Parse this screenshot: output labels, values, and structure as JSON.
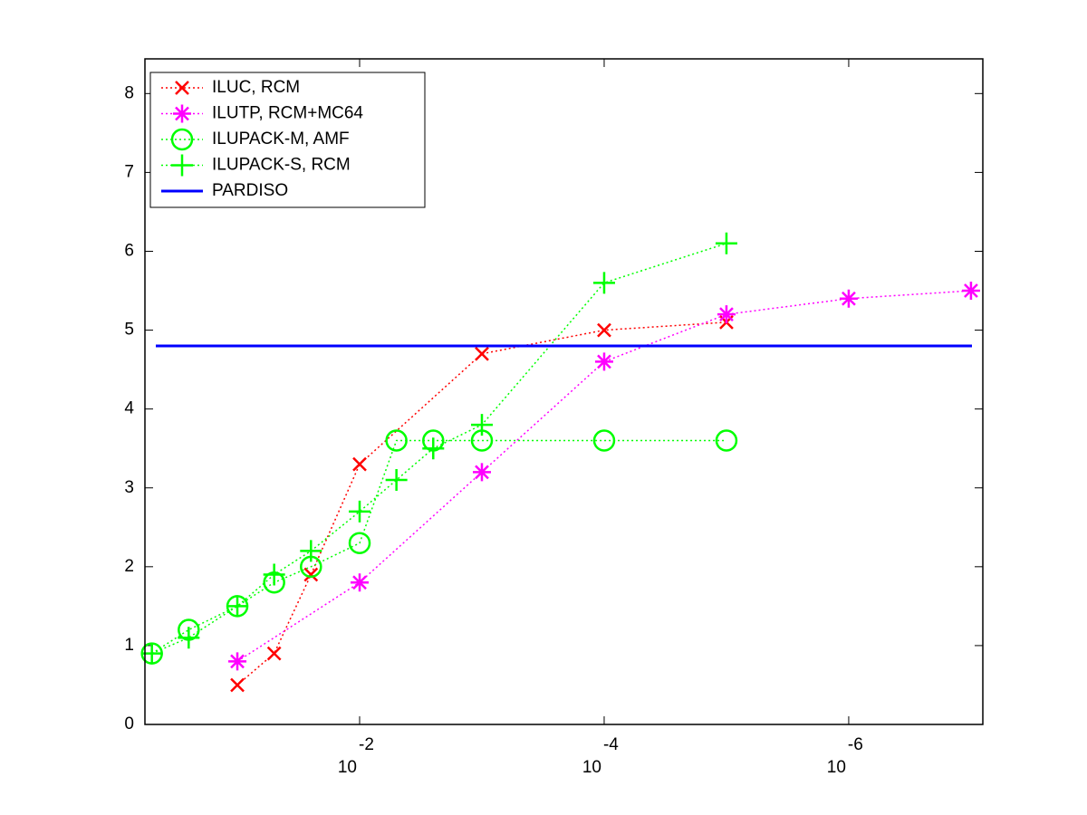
{
  "chart_data": {
    "type": "line",
    "xscale": "log",
    "xreverse": true,
    "xlim": [
      0.57,
      8e-08
    ],
    "ylim": [
      0,
      8.44
    ],
    "xticks": [
      {
        "value": 0.01,
        "label": "10",
        "exponent": "-2"
      },
      {
        "value": 0.0001,
        "label": "10",
        "exponent": "-4"
      },
      {
        "value": 1e-06,
        "label": "10",
        "exponent": "-6"
      }
    ],
    "yticks": [
      0,
      1,
      2,
      3,
      4,
      5,
      6,
      7,
      8
    ],
    "legend": "upper left",
    "series": [
      {
        "name": "ILUC, RCM",
        "color": "#ff0000",
        "marker": "x",
        "linestyle": "dotted",
        "x": [
          0.1,
          0.05,
          0.025,
          0.01,
          0.001,
          0.0001,
          1e-05
        ],
        "values": [
          0.5,
          0.9,
          1.9,
          3.3,
          4.7,
          5.0,
          5.1
        ]
      },
      {
        "name": "ILUTP, RCM+MC64",
        "color": "#ff00ff",
        "marker": "star",
        "linestyle": "dotted",
        "x": [
          0.1,
          0.01,
          0.001,
          0.0001,
          1e-05,
          1e-06,
          1e-07
        ],
        "values": [
          0.8,
          1.8,
          3.2,
          4.6,
          5.2,
          5.4,
          5.5
        ]
      },
      {
        "name": "ILUPACK-M, AMF",
        "color": "#00ff00",
        "marker": "circle",
        "linestyle": "dotted",
        "x": [
          0.5,
          0.25,
          0.1,
          0.05,
          0.025,
          0.01,
          0.005,
          0.0025,
          0.001,
          0.0001,
          1e-05
        ],
        "values": [
          0.9,
          1.2,
          1.5,
          1.8,
          2.0,
          2.3,
          3.6,
          3.6,
          3.6,
          3.6,
          3.6
        ]
      },
      {
        "name": "ILUPACK-S, RCM",
        "color": "#00ff00",
        "marker": "plus",
        "linestyle": "dotted",
        "x": [
          0.5,
          0.25,
          0.1,
          0.05,
          0.025,
          0.01,
          0.005,
          0.0025,
          0.001,
          0.0001,
          1e-05
        ],
        "values": [
          0.9,
          1.1,
          1.5,
          1.9,
          2.2,
          2.7,
          3.1,
          3.5,
          3.8,
          5.6,
          6.1
        ]
      },
      {
        "name": "PARDISO",
        "color": "#0000ff",
        "marker": "none",
        "linestyle": "solid",
        "value": 4.8
      }
    ]
  }
}
